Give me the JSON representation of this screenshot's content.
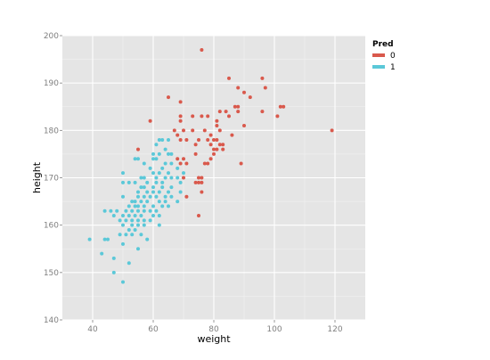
{
  "chart_data": {
    "type": "scatter",
    "title": "",
    "xlabel": "weight",
    "ylabel": "height",
    "xlim": [
      30,
      130
    ],
    "ylim": [
      140,
      200
    ],
    "x_ticks": [
      40,
      60,
      80,
      100,
      120
    ],
    "y_ticks": [
      140,
      150,
      160,
      170,
      180,
      190,
      200
    ],
    "x_tick_labels": [
      "40",
      "60",
      "80",
      "100",
      "120"
    ],
    "y_tick_labels": [
      "140",
      "150",
      "160",
      "170",
      "180",
      "190",
      "200"
    ],
    "grid": true,
    "legend": {
      "title": "Pred",
      "placement": "top-right outside"
    },
    "series": [
      {
        "name": "0",
        "color": "#d9594c",
        "points": [
          [
            76,
            197
          ],
          [
            85,
            191
          ],
          [
            96,
            191
          ],
          [
            97,
            189
          ],
          [
            88,
            189
          ],
          [
            90,
            188
          ],
          [
            65,
            187
          ],
          [
            92,
            187
          ],
          [
            69,
            186
          ],
          [
            87,
            185
          ],
          [
            88,
            185
          ],
          [
            102,
            185
          ],
          [
            103,
            185
          ],
          [
            84,
            184
          ],
          [
            82,
            184
          ],
          [
            88,
            184
          ],
          [
            96,
            184
          ],
          [
            69,
            183
          ],
          [
            73,
            183
          ],
          [
            76,
            183
          ],
          [
            78,
            183
          ],
          [
            85,
            183
          ],
          [
            101,
            183
          ],
          [
            59,
            182
          ],
          [
            69,
            182
          ],
          [
            81,
            182
          ],
          [
            81,
            181
          ],
          [
            90,
            181
          ],
          [
            82,
            180
          ],
          [
            119,
            180
          ],
          [
            67,
            180
          ],
          [
            70,
            180
          ],
          [
            73,
            180
          ],
          [
            77,
            180
          ],
          [
            86,
            179
          ],
          [
            68,
            179
          ],
          [
            79,
            179
          ],
          [
            80,
            178
          ],
          [
            71,
            178
          ],
          [
            81,
            178
          ],
          [
            69,
            178
          ],
          [
            75,
            178
          ],
          [
            78,
            178
          ],
          [
            82,
            177
          ],
          [
            83,
            177
          ],
          [
            79,
            177
          ],
          [
            74,
            177
          ],
          [
            81,
            176
          ],
          [
            55,
            176
          ],
          [
            80,
            176
          ],
          [
            83,
            176
          ],
          [
            74,
            175
          ],
          [
            79,
            174
          ],
          [
            80,
            175
          ],
          [
            70,
            174
          ],
          [
            68,
            174
          ],
          [
            71,
            173
          ],
          [
            78,
            173
          ],
          [
            69,
            173
          ],
          [
            89,
            173
          ],
          [
            77,
            173
          ],
          [
            70,
            170
          ],
          [
            75,
            170
          ],
          [
            76,
            170
          ],
          [
            74,
            169
          ],
          [
            75,
            169
          ],
          [
            76,
            169
          ],
          [
            71,
            166
          ],
          [
            76,
            167
          ],
          [
            75,
            162
          ]
        ]
      },
      {
        "name": "1",
        "color": "#5bc8d8",
        "points": [
          [
            62,
            178
          ],
          [
            63,
            178
          ],
          [
            65,
            178
          ],
          [
            61,
            177
          ],
          [
            64,
            176
          ],
          [
            66,
            175
          ],
          [
            62,
            175
          ],
          [
            60,
            175
          ],
          [
            65,
            175
          ],
          [
            55,
            174
          ],
          [
            54,
            174
          ],
          [
            60,
            174
          ],
          [
            61,
            174
          ],
          [
            64,
            173
          ],
          [
            66,
            173
          ],
          [
            57,
            173
          ],
          [
            59,
            172
          ],
          [
            63,
            172
          ],
          [
            68,
            172
          ],
          [
            60,
            171
          ],
          [
            50,
            171
          ],
          [
            62,
            171
          ],
          [
            65,
            171
          ],
          [
            70,
            171
          ],
          [
            56,
            170
          ],
          [
            57,
            170
          ],
          [
            61,
            170
          ],
          [
            64,
            170
          ],
          [
            66,
            170
          ],
          [
            68,
            170
          ],
          [
            50,
            169
          ],
          [
            52,
            169
          ],
          [
            54,
            169
          ],
          [
            58,
            169
          ],
          [
            61,
            169
          ],
          [
            63,
            169
          ],
          [
            69,
            169
          ],
          [
            56,
            168
          ],
          [
            57,
            168
          ],
          [
            60,
            168
          ],
          [
            63,
            168
          ],
          [
            66,
            168
          ],
          [
            55,
            167
          ],
          [
            58,
            167
          ],
          [
            60,
            167
          ],
          [
            62,
            167
          ],
          [
            65,
            167
          ],
          [
            69,
            167
          ],
          [
            50,
            166
          ],
          [
            55,
            166
          ],
          [
            57,
            166
          ],
          [
            59,
            166
          ],
          [
            61,
            166
          ],
          [
            64,
            166
          ],
          [
            66,
            166
          ],
          [
            53,
            165
          ],
          [
            54,
            165
          ],
          [
            56,
            165
          ],
          [
            58,
            165
          ],
          [
            62,
            165
          ],
          [
            64,
            165
          ],
          [
            68,
            165
          ],
          [
            52,
            164
          ],
          [
            54,
            164
          ],
          [
            55,
            164
          ],
          [
            57,
            164
          ],
          [
            60,
            164
          ],
          [
            63,
            164
          ],
          [
            65,
            164
          ],
          [
            46,
            163
          ],
          [
            48,
            163
          ],
          [
            51,
            163
          ],
          [
            53,
            163
          ],
          [
            55,
            163
          ],
          [
            57,
            163
          ],
          [
            59,
            163
          ],
          [
            61,
            163
          ],
          [
            44,
            163
          ],
          [
            47,
            162
          ],
          [
            50,
            162
          ],
          [
            52,
            162
          ],
          [
            54,
            162
          ],
          [
            56,
            162
          ],
          [
            60,
            162
          ],
          [
            62,
            162
          ],
          [
            49,
            161
          ],
          [
            51,
            161
          ],
          [
            53,
            161
          ],
          [
            55,
            161
          ],
          [
            57,
            161
          ],
          [
            59,
            161
          ],
          [
            50,
            160
          ],
          [
            53,
            160
          ],
          [
            55,
            160
          ],
          [
            57,
            160
          ],
          [
            62,
            160
          ],
          [
            52,
            159
          ],
          [
            54,
            159
          ],
          [
            49,
            158
          ],
          [
            51,
            158
          ],
          [
            53,
            158
          ],
          [
            56,
            158
          ],
          [
            58,
            157
          ],
          [
            39,
            157
          ],
          [
            44,
            157
          ],
          [
            45,
            157
          ],
          [
            50,
            156
          ],
          [
            55,
            155
          ],
          [
            43,
            154
          ],
          [
            47,
            153
          ],
          [
            52,
            152
          ],
          [
            47,
            150
          ],
          [
            50,
            148
          ]
        ]
      }
    ]
  }
}
